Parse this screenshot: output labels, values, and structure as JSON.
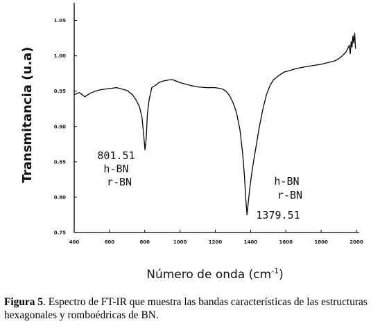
{
  "chart_data": {
    "type": "line",
    "xlabel_main": "Número de onda (cm",
    "xlabel_sup": "-1",
    "xlabel_close": ")",
    "ylabel": "Transmitancia (u.a)",
    "xlim": [
      400,
      2000
    ],
    "ylim": [
      0.75,
      1.075
    ],
    "x_ticks": [
      "400",
      "600",
      "800",
      "1000",
      "1200",
      "1400",
      "1600",
      "1800",
      "2000"
    ],
    "x_tick_values": [
      400,
      600,
      800,
      1000,
      1200,
      1400,
      1600,
      1800,
      2000
    ],
    "y_ticks": [
      "0.75",
      "0.80",
      "0.85",
      "0.90",
      "0.95",
      "1.00",
      "1.05"
    ],
    "y_tick_values": [
      0.75,
      0.8,
      0.85,
      0.9,
      0.95,
      1.0,
      1.05
    ],
    "series": [
      {
        "x": [
          400,
          430,
          460,
          490,
          520,
          550,
          580,
          610,
          640,
          670,
          700,
          730,
          750,
          770,
          785,
          795,
          801.5,
          808,
          815,
          825,
          840,
          860,
          880,
          900,
          920,
          940,
          960,
          980,
          1000,
          1030,
          1060,
          1100,
          1150,
          1200,
          1240,
          1260,
          1280,
          1300,
          1320,
          1340,
          1355,
          1365,
          1372,
          1379.5,
          1386,
          1395,
          1410,
          1430,
          1450,
          1470,
          1490,
          1510,
          1530,
          1560,
          1590,
          1620,
          1660,
          1700,
          1750,
          1800,
          1850,
          1880,
          1900,
          1920,
          1940,
          1950,
          1960,
          1965,
          1970,
          1975,
          1980,
          1985,
          1990,
          1995
        ],
        "y": [
          0.945,
          0.948,
          0.942,
          0.947,
          0.95,
          0.952,
          0.953,
          0.954,
          0.955,
          0.953,
          0.951,
          0.945,
          0.938,
          0.928,
          0.912,
          0.885,
          0.867,
          0.882,
          0.918,
          0.938,
          0.955,
          0.958,
          0.962,
          0.964,
          0.965,
          0.966,
          0.966,
          0.964,
          0.962,
          0.96,
          0.958,
          0.956,
          0.955,
          0.955,
          0.953,
          0.95,
          0.944,
          0.934,
          0.92,
          0.895,
          0.862,
          0.83,
          0.8,
          0.775,
          0.79,
          0.812,
          0.84,
          0.87,
          0.9,
          0.925,
          0.945,
          0.958,
          0.966,
          0.972,
          0.977,
          0.979,
          0.982,
          0.984,
          0.986,
          0.988,
          0.991,
          0.993,
          0.996,
          1.0,
          1.005,
          1.01,
          1.015,
          1.003,
          1.02,
          1.012,
          1.028,
          1.018,
          1.032,
          1.01
        ]
      }
    ],
    "annotations": [
      {
        "lines": [
          "801.51",
          "h-BN",
          "r-BN"
        ],
        "x": 801.51
      },
      {
        "lines": [
          "h-BN",
          "r-BN"
        ],
        "x": 1379.51
      },
      {
        "lines": [
          "1379.51"
        ],
        "x": 1379.51
      }
    ]
  },
  "caption": {
    "label": "Figura 5",
    "text": ". Espectro de  FT-IR que muestra las bandas características de las estructuras hexagonales y romboédricas de BN."
  }
}
